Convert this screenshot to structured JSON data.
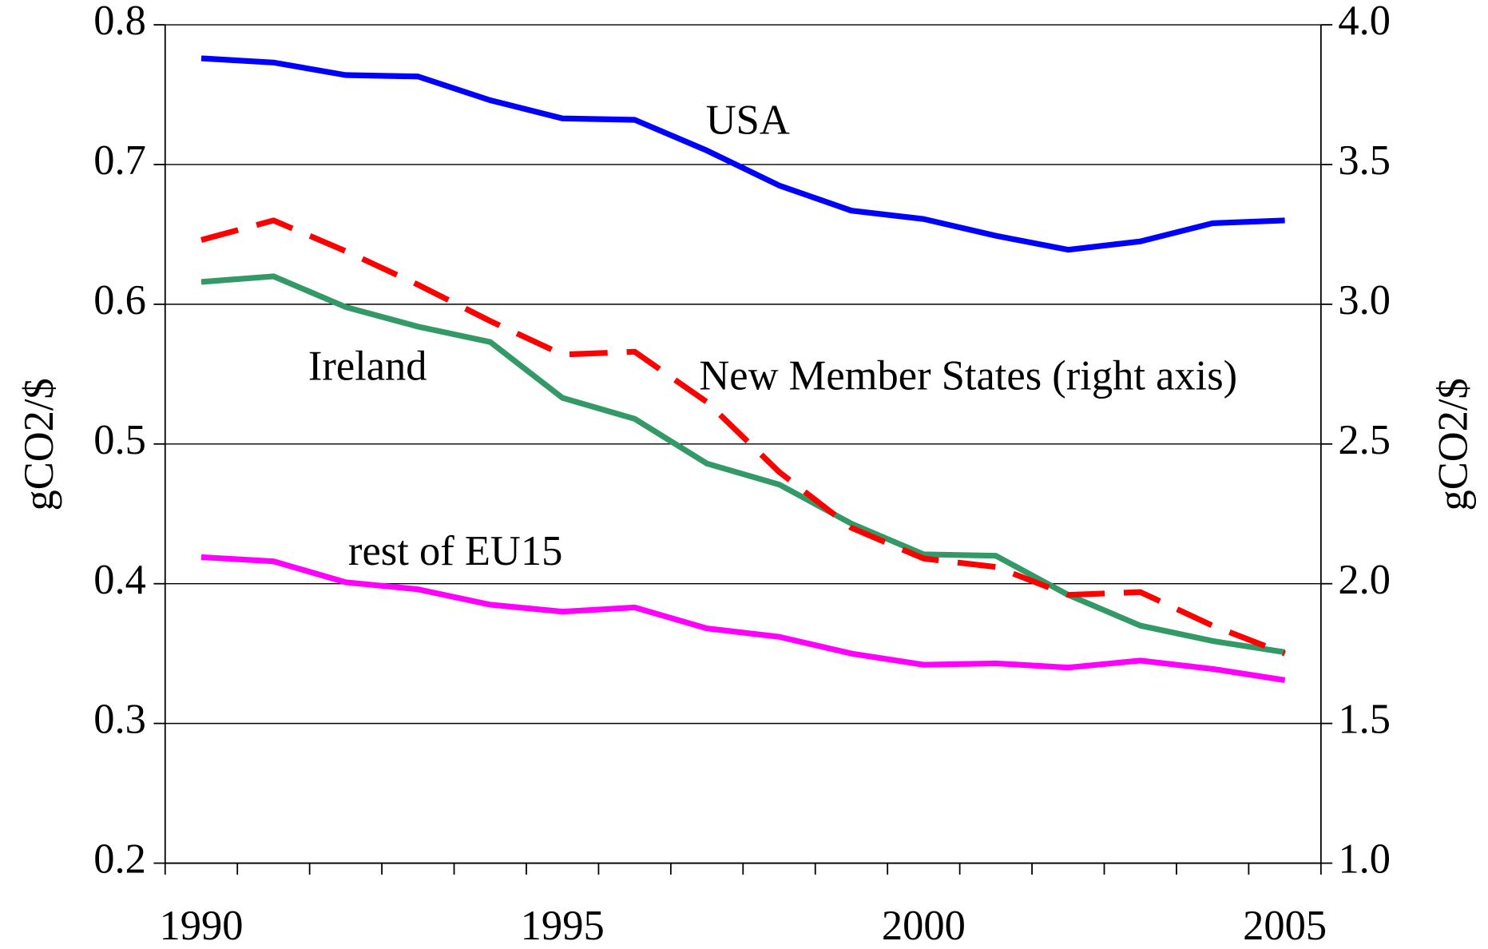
{
  "chart_data": {
    "type": "line",
    "categories": [
      "1990",
      null,
      null,
      null,
      null,
      "1995",
      null,
      null,
      null,
      null,
      "2000",
      null,
      null,
      null,
      null,
      "2005"
    ],
    "ylabel": "gCO2/$",
    "y2label": "gCO2/$",
    "ylim": [
      0.2,
      0.8
    ],
    "yticks": [
      0.2,
      0.3,
      0.4,
      0.5,
      0.6,
      0.7,
      0.8
    ],
    "y2lim": [
      1.0,
      4.0
    ],
    "y2ticks": [
      {
        "value": 1.0,
        "label": "1.0"
      },
      1.5,
      {
        "value": 2.0,
        "label": "2.0"
      },
      2.5,
      {
        "value": 3.0,
        "label": "3.0"
      },
      3.5,
      {
        "value": 4.0,
        "label": "4.0"
      }
    ],
    "yticklabels_fixed": true,
    "grid": true,
    "series": [
      {
        "name": "USA",
        "color": "#0000ff",
        "values": [
          0.776,
          0.773,
          0.764,
          0.763,
          0.746,
          0.733,
          0.732,
          0.71,
          0.685,
          0.667,
          0.661,
          0.649,
          0.639,
          0.645,
          0.658,
          0.66
        ]
      },
      {
        "name": "Ireland",
        "color": "#339966",
        "values": [
          0.616,
          0.62,
          0.598,
          0.584,
          0.573,
          0.533,
          0.518,
          0.486,
          0.471,
          0.443,
          0.421,
          0.42,
          0.392,
          0.37,
          0.359,
          0.351
        ]
      },
      {
        "name": "New Member States (right axis)",
        "color": "#ff0000",
        "dashed": true,
        "axis": "y2",
        "values": [
          3.23,
          3.3,
          3.19,
          3.07,
          2.94,
          2.82,
          2.83,
          2.65,
          2.4,
          2.2,
          2.09,
          2.06,
          1.96,
          1.97,
          1.85,
          1.75
        ]
      },
      {
        "name": "rest of EU15",
        "color": "#ff00ff",
        "values": [
          0.419,
          0.416,
          0.401,
          0.396,
          0.385,
          0.38,
          0.383,
          0.368,
          0.362,
          0.35,
          0.342,
          0.343,
          0.34,
          0.345,
          0.339,
          0.331
        ]
      }
    ]
  }
}
